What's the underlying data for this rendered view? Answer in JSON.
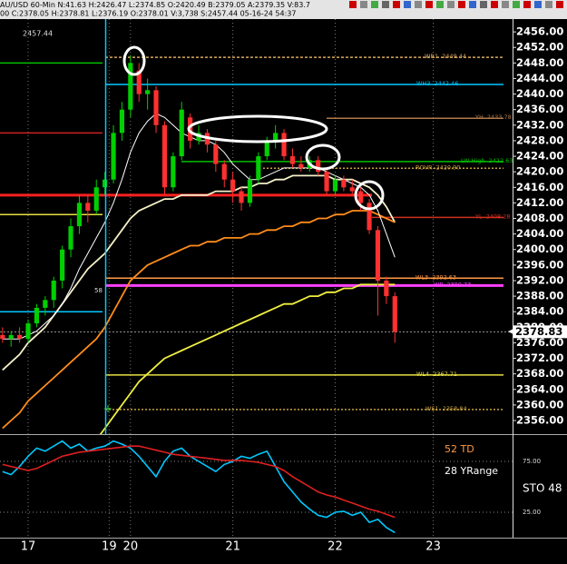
{
  "chart_data": {
    "type": "candlestick",
    "status_lines": [
      "AU/USD 60-Min N:41.63 H:2426.47 L:2374.85 O:2420.49 B:2379.05 A:2379.35 V:83.7",
      "00 C:2378.05 H:2378.81 L:2376.19 O:2378.01 V:3,738 S:2457.44 05-16-24 54:37"
    ],
    "annotations": [
      "2457.44",
      "58"
    ],
    "up_color": "#00d000",
    "down_color": "#ff3030",
    "open": [
      2378,
      2377,
      2378,
      2377,
      2381,
      2385,
      2387,
      2392,
      2400,
      2406,
      2412,
      2410,
      2416,
      2418,
      2430,
      2436,
      2446,
      2440,
      2441,
      2432,
      2416,
      2424,
      2434,
      2428,
      2430,
      2427,
      2422,
      2418,
      2415,
      2412,
      2418,
      2424,
      2428,
      2430,
      2424,
      2422,
      2421,
      2423,
      2420,
      2415,
      2418,
      2416,
      2415,
      2412,
      2405,
      2392,
      2388
    ],
    "high": [
      2380,
      2379,
      2380,
      2382,
      2386,
      2388,
      2393,
      2401,
      2408,
      2414,
      2414,
      2418,
      2420,
      2432,
      2438,
      2450,
      2448,
      2444,
      2442,
      2433,
      2425,
      2438,
      2435,
      2432,
      2431,
      2428,
      2423,
      2420,
      2416,
      2419,
      2425,
      2429,
      2432,
      2431,
      2426,
      2424,
      2424,
      2424,
      2421,
      2419,
      2419,
      2418,
      2416,
      2413,
      2406,
      2393,
      2389
    ],
    "low": [
      2376,
      2375,
      2376,
      2376,
      2380,
      2383,
      2385,
      2390,
      2398,
      2404,
      2407,
      2409,
      2414,
      2417,
      2428,
      2434,
      2438,
      2436,
      2430,
      2414,
      2415,
      2423,
      2426,
      2427,
      2425,
      2420,
      2416,
      2412,
      2410,
      2411,
      2417,
      2423,
      2426,
      2423,
      2421,
      2420,
      2420,
      2419,
      2414,
      2414,
      2415,
      2414,
      2410,
      2404,
      2383,
      2386,
      2376
    ],
    "close": [
      2377,
      2378,
      2377,
      2381,
      2385,
      2387,
      2392,
      2400,
      2406,
      2412,
      2410,
      2416,
      2418,
      2430,
      2436,
      2448,
      2440,
      2441,
      2432,
      2416,
      2424,
      2436,
      2428,
      2430,
      2427,
      2422,
      2418,
      2415,
      2412,
      2418,
      2424,
      2428,
      2430,
      2424,
      2422,
      2421,
      2423,
      2420,
      2415,
      2418,
      2416,
      2415,
      2412,
      2405,
      2392,
      2388,
      2378.83
    ],
    "ma": [
      {
        "color": "#f5f0c8",
        "values": [
          2369,
          2371,
          2373,
          2376,
          2378,
          2380,
          2383,
          2386,
          2389,
          2392,
          2395,
          2397,
          2399,
          2402,
          2405,
          2408,
          2410,
          2411,
          2412,
          2413,
          2413,
          2414,
          2414,
          2414,
          2414,
          2415,
          2415,
          2415,
          2416,
          2416,
          2417,
          2417,
          2418,
          2418,
          2419,
          2419,
          2419,
          2419,
          2419,
          2418,
          2418,
          2418,
          2417,
          2416,
          2414,
          2411,
          2407
        ]
      },
      {
        "color": "#ff8c1a",
        "values": [
          2354,
          2356,
          2358,
          2361,
          2363,
          2365,
          2367,
          2369,
          2371,
          2373,
          2375,
          2377,
          2380,
          2384,
          2388,
          2392,
          2394,
          2396,
          2397,
          2398,
          2399,
          2400,
          2401,
          2401,
          2402,
          2402,
          2403,
          2403,
          2403,
          2404,
          2404,
          2405,
          2405,
          2406,
          2406,
          2407,
          2407,
          2408,
          2408,
          2409,
          2409,
          2410,
          2410,
          2410,
          2409,
          2408,
          2407
        ]
      },
      {
        "color": "#f0f040",
        "values": [
          2338,
          2339,
          2340,
          2341,
          2342,
          2343,
          2344,
          2345,
          2346,
          2347,
          2349,
          2351,
          2354,
          2357,
          2360,
          2363,
          2366,
          2368,
          2370,
          2372,
          2373,
          2374,
          2375,
          2376,
          2377,
          2378,
          2379,
          2380,
          2381,
          2382,
          2383,
          2384,
          2385,
          2386,
          2386,
          2387,
          2388,
          2388,
          2389,
          2389,
          2390,
          2390,
          2391,
          2391,
          2391,
          2391,
          2391
        ]
      },
      {
        "color": "#ffffff",
        "values": [
          2377,
          2377,
          2377,
          2378,
          2379,
          2381,
          2383,
          2386,
          2390,
          2395,
          2399,
          2403,
          2407,
          2412,
          2418,
          2425,
          2430,
          2433,
          2435,
          2434,
          2432,
          2430,
          2429,
          2428,
          2428,
          2427,
          2425,
          2422,
          2420,
          2418,
          2418,
          2419,
          2420,
          2421,
          2421,
          2421,
          2421,
          2421,
          2420,
          2419,
          2418,
          2417,
          2416,
          2414,
          2410,
          2404,
          2398
        ]
      }
    ],
    "prior_levels": [
      {
        "value": 2448,
        "color": "#00c000"
      },
      {
        "value": 2430,
        "color": "#d02020"
      },
      {
        "value": 2414,
        "color": "#ff2020"
      },
      {
        "value": 2409,
        "color": "#e8e040"
      },
      {
        "value": 2384,
        "color": "#00c8ff"
      }
    ],
    "levels": [
      {
        "name": "WR1",
        "value": 2449.44,
        "color": "#d9a85c"
      },
      {
        "name": "WH3",
        "value": 2442.46,
        "color": "#00c8ff"
      },
      {
        "name": "YH",
        "value": 2433.78,
        "color": "#b07848"
      },
      {
        "name": "LW High",
        "value": 2422.63,
        "color": "#00c000"
      },
      {
        "name": "ROVR",
        "value": 2420.9,
        "value_label": "2420.90",
        "color": "#c8a040"
      },
      {
        "name": "YL",
        "value": 2408.28,
        "color": "#d03020"
      },
      {
        "name": "WL3",
        "value": 2392.63,
        "color": "#ff9944"
      },
      {
        "name": "WP",
        "value": 2390.73,
        "color": "#ff40ff"
      },
      {
        "name": "WL4",
        "value": 2367.71,
        "color": "#e8e040"
      },
      {
        "name": "WS1",
        "value": 2358.84,
        "color": "#c8a040"
      }
    ],
    "xlim": [
      -0.3,
      59.8
    ],
    "xticks": [
      {
        "value": 3,
        "label": "17"
      },
      {
        "value": 12.5,
        "label": "19"
      },
      {
        "value": 15,
        "label": "20"
      },
      {
        "value": 27,
        "label": "21"
      },
      {
        "value": 39,
        "label": "22"
      },
      {
        "value": 50.5,
        "label": "23"
      }
    ],
    "ylim": [
      2352.5,
      2460
    ],
    "yticks": [
      {
        "value": 2356,
        "label": "2356.00"
      },
      {
        "value": 2360,
        "label": "2360.00"
      },
      {
        "value": 2364,
        "label": "2364.00"
      },
      {
        "value": 2368,
        "label": "2368.00"
      },
      {
        "value": 2372,
        "label": "2372.00"
      },
      {
        "value": 2376,
        "label": "2376.00"
      },
      {
        "value": 2380,
        "label": "2380.00"
      },
      {
        "value": 2384,
        "label": "2384.00"
      },
      {
        "value": 2388,
        "label": "2388.00"
      },
      {
        "value": 2392,
        "label": "2392.00"
      },
      {
        "value": 2396,
        "label": "2396.00"
      },
      {
        "value": 2400,
        "label": "2400.00"
      },
      {
        "value": 2404,
        "label": "2404.00"
      },
      {
        "value": 2408,
        "label": "2408.00"
      },
      {
        "value": 2412,
        "label": "2412.00"
      },
      {
        "value": 2416,
        "label": "2416.00"
      },
      {
        "value": 2420,
        "label": "2420.00"
      },
      {
        "value": 2424,
        "label": "2424.00"
      },
      {
        "value": 2428,
        "label": "2428.00"
      },
      {
        "value": 2432,
        "label": "2432.00"
      },
      {
        "value": 2436,
        "label": "2436.00"
      },
      {
        "value": 2440,
        "label": "2440.00"
      },
      {
        "value": 2444,
        "label": "2444.00"
      },
      {
        "value": 2448,
        "label": "2448.00"
      },
      {
        "value": 2452,
        "label": "2452.00"
      },
      {
        "value": 2456,
        "label": "2456.00"
      }
    ],
    "stoch": {
      "labels": [
        "52 TD",
        "28 YRange",
        "STO 48"
      ],
      "label_colors": [
        "#ff9944",
        "#ffffff",
        "#ffffff"
      ],
      "ylim": [
        0,
        100
      ],
      "yticks": [
        {
          "value": 75,
          "label": "75.00"
        },
        {
          "value": 25,
          "label": "25.00"
        }
      ],
      "series": [
        {
          "color": "#00c8ff",
          "values": [
            65,
            62,
            70,
            80,
            88,
            85,
            90,
            95,
            88,
            92,
            85,
            88,
            90,
            95,
            92,
            88,
            80,
            70,
            60,
            75,
            85,
            88,
            80,
            75,
            70,
            65,
            72,
            75,
            80,
            78,
            82,
            85,
            70,
            55,
            45,
            35,
            28,
            22,
            20,
            25,
            26,
            22,
            25,
            15,
            18,
            10,
            5
          ]
        },
        {
          "color": "#e02020",
          "values": [
            72,
            70,
            68,
            66,
            68,
            72,
            76,
            80,
            82,
            84,
            85,
            86,
            87,
            88,
            89,
            90,
            90,
            88,
            86,
            84,
            82,
            81,
            80,
            79,
            78,
            77,
            76,
            76,
            76,
            75,
            74,
            72,
            70,
            66,
            60,
            55,
            50,
            45,
            42,
            40,
            37,
            34,
            31,
            28,
            26,
            23,
            20
          ]
        }
      ]
    }
  }
}
